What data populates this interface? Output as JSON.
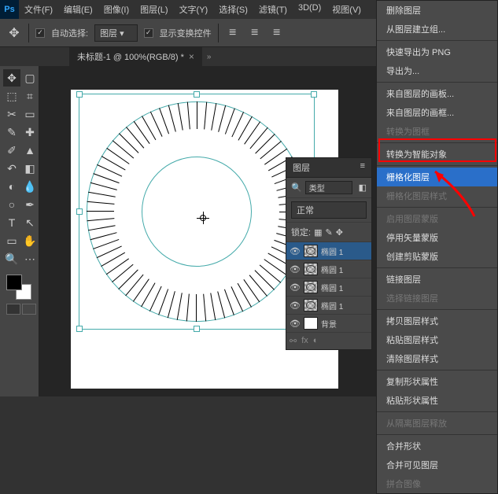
{
  "app": {
    "logo": "Ps"
  },
  "menu": [
    "文件(F)",
    "编辑(E)",
    "图像(I)",
    "图层(L)",
    "文字(Y)",
    "选择(S)",
    "滤镜(T)",
    "3D(D)",
    "视图(V)"
  ],
  "options": {
    "auto_select": "自动选择:",
    "layer_dropdown": "图层",
    "show_transform": "显示变换控件"
  },
  "tab": {
    "title": "未标题-1 @ 100%(RGB/8) *"
  },
  "layers_panel": {
    "title": "图层",
    "search_label": "类型",
    "blend_mode": "正常",
    "lock_label": "锁定:",
    "layers": [
      {
        "name": "椭圆 1"
      },
      {
        "name": "椭圆 1"
      },
      {
        "name": "椭圆 1"
      },
      {
        "name": "椭圆 1"
      },
      {
        "name": "背景"
      }
    ]
  },
  "context_menu": {
    "groups": [
      [
        {
          "t": "删除图层"
        },
        {
          "t": "从图层建立组..."
        }
      ],
      [
        {
          "t": "快速导出为 PNG"
        },
        {
          "t": "导出为..."
        }
      ],
      [
        {
          "t": "来自图层的画板..."
        },
        {
          "t": "来自图层的画框..."
        },
        {
          "t": "转换为图框",
          "d": true
        }
      ],
      [
        {
          "t": "转换为智能对象"
        }
      ],
      [
        {
          "t": "栅格化图层",
          "hl": true
        },
        {
          "t": "栅格化图层样式",
          "d": true
        }
      ],
      [
        {
          "t": "启用图层蒙版",
          "d": true
        },
        {
          "t": "停用矢量蒙版"
        },
        {
          "t": "创建剪贴蒙版"
        }
      ],
      [
        {
          "t": "链接图层"
        },
        {
          "t": "选择链接图层",
          "d": true
        }
      ],
      [
        {
          "t": "拷贝图层样式"
        },
        {
          "t": "粘贴图层样式"
        },
        {
          "t": "清除图层样式"
        }
      ],
      [
        {
          "t": "复制形状属性"
        },
        {
          "t": "粘贴形状属性"
        }
      ],
      [
        {
          "t": "从隔离图层释放",
          "d": true
        }
      ],
      [
        {
          "t": "合并形状"
        },
        {
          "t": "合并可见图层"
        },
        {
          "t": "拼合图像",
          "d": true
        }
      ]
    ]
  }
}
